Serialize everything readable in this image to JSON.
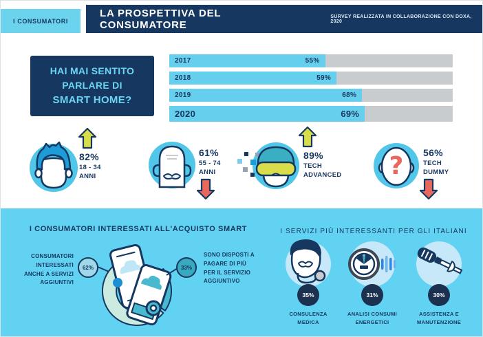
{
  "colors": {
    "navy": "#16375F",
    "tag-cyan": "#6CD3EF",
    "bar-cyan": "#67CFEE",
    "track-gray": "#C9CCCE",
    "bg-cyan": "#61D2F2",
    "icon-cyan": "#50C6E8",
    "arrow-up-green": "#D9DD4A",
    "arrow-down-red": "#E8685D",
    "teal": "#38A9BE",
    "mint": "#CBEAE0",
    "pale-blue": "#C7E8F8",
    "badge-navy": "#1C3150",
    "accent-blue": "#1D8FD4"
  },
  "header": {
    "tag": "I CONSUMATORI",
    "title": "LA PROSPETTIVA DEL CONSUMATORE",
    "subtitle": "SURVEY REALIZZATA IN COLLABORAZIONE CON DOXA, 2020"
  },
  "question_box": {
    "line1": "HAI MAI SENTITO",
    "line2": "PARLARE DI",
    "line3": "SMART HOME?"
  },
  "chart_data": {
    "type": "bar",
    "title": "HAI MAI SENTITO PARLARE DI SMART HOME?",
    "categories": [
      "2017",
      "2018",
      "2019",
      "2020"
    ],
    "values": [
      55,
      59,
      68,
      69
    ],
    "labels": [
      "55%",
      "59%",
      "68%",
      "69%"
    ],
    "unit": "%",
    "xlim": [
      0,
      100
    ],
    "orientation": "horizontal",
    "bar_color": "#67CFEE",
    "track_color": "#C9CCCE"
  },
  "demographics": [
    {
      "icon": "young-person",
      "trend": "up",
      "value": "82%",
      "line1": "18 - 34",
      "line2": "ANNI"
    },
    {
      "icon": "senior-person",
      "trend": "down",
      "value": "61%",
      "line1": "55 - 74",
      "line2": "ANNI"
    },
    {
      "icon": "vr-person",
      "trend": "up",
      "value": "89%",
      "line1": "TECH",
      "line2": "ADVANCED"
    },
    {
      "icon": "question-person",
      "trend": "down",
      "value": "56%",
      "line1": "TECH",
      "line2": "DUMMY"
    }
  ],
  "purchase_section": {
    "title": "I CONSUMATORI INTERESSATI ALL'ACQUISTO SMART",
    "left": {
      "value": "62%",
      "text_pre": "CONSUMATORI INTERESSATI ANCHE A ",
      "text_bold": "SERVIZI AGGIUNTIVI",
      "text_post": ""
    },
    "right": {
      "value": "33%",
      "text_pre": "SONO DISPOSTI A ",
      "text_bold": "PAGARE DI PIÙ",
      "text_post": " PER IL SERVIZIO AGGIUNTIVO"
    }
  },
  "services_section": {
    "title": "I SERVIZI PIÙ INTERESSANTI PER GLI ITALIANI",
    "items": [
      {
        "icon": "doctor",
        "value": "35%",
        "label1": "CONSULENZA",
        "label2": "MEDICA"
      },
      {
        "icon": "energy-meter",
        "value": "31%",
        "label1": "ANALISI CONSUMI",
        "label2": "ENERGETICI"
      },
      {
        "icon": "screwdriver",
        "value": "30%",
        "label1": "ASSISTENZA E",
        "label2": "MANUTENZIONE"
      }
    ]
  }
}
